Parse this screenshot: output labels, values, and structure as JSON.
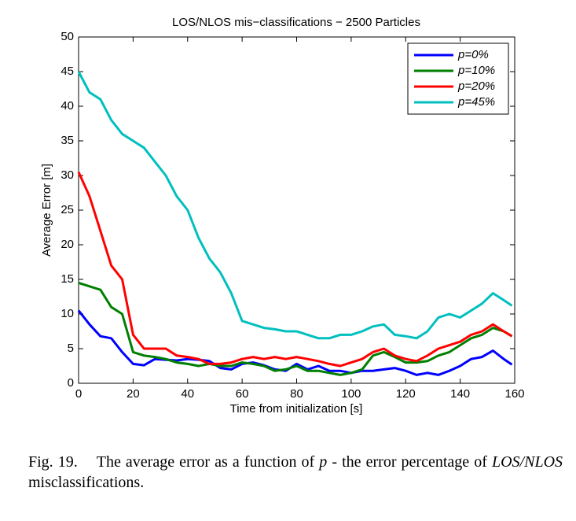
{
  "chart_data": {
    "type": "line",
    "title": "LOS/NLOS mis−classifications − 2500 Particles",
    "x_label": "Time from initialization [s]",
    "y_label": "Average Error [m]",
    "x": [
      0,
      4,
      8,
      12,
      16,
      20,
      24,
      28,
      32,
      36,
      40,
      44,
      48,
      52,
      56,
      60,
      64,
      68,
      72,
      76,
      80,
      84,
      88,
      92,
      96,
      100,
      104,
      108,
      112,
      116,
      120,
      124,
      128,
      132,
      136,
      140,
      144,
      148,
      152,
      156,
      159
    ],
    "series": [
      {
        "name": "p=0%",
        "color": "#0000ff",
        "values": [
          10.5,
          8.5,
          6.8,
          6.5,
          4.5,
          2.8,
          2.6,
          3.5,
          3.4,
          3.3,
          3.5,
          3.4,
          3.2,
          2.2,
          2.0,
          2.8,
          3.0,
          2.6,
          2.0,
          1.8,
          2.8,
          2.0,
          2.5,
          1.8,
          1.8,
          1.5,
          1.8,
          1.8,
          2.0,
          2.2,
          1.8,
          1.2,
          1.5,
          1.2,
          1.8,
          2.5,
          3.5,
          3.8,
          4.7,
          3.5,
          2.7
        ]
      },
      {
        "name": "p=10%",
        "color": "#007f00",
        "values": [
          14.5,
          14,
          13.5,
          11,
          10,
          4.5,
          4.0,
          3.8,
          3.5,
          3.0,
          2.8,
          2.5,
          2.8,
          2.5,
          2.5,
          3.0,
          2.8,
          2.5,
          1.8,
          2.0,
          2.5,
          1.8,
          1.8,
          1.5,
          1.2,
          1.5,
          2.0,
          4.0,
          4.5,
          3.8,
          3.0,
          3.0,
          3.2,
          4.0,
          4.5,
          5.5,
          6.5,
          7.0,
          8.0,
          7.5,
          6.8
        ]
      },
      {
        "name": "p=20%",
        "color": "#ff0000",
        "values": [
          30.5,
          27,
          22,
          17,
          15,
          7,
          5,
          5,
          5,
          4,
          3.8,
          3.5,
          2.8,
          2.8,
          3.0,
          3.5,
          3.8,
          3.5,
          3.8,
          3.5,
          3.8,
          3.5,
          3.2,
          2.8,
          2.5,
          3.0,
          3.5,
          4.5,
          5.0,
          4.0,
          3.5,
          3.2,
          4.0,
          5.0,
          5.5,
          6.0,
          7.0,
          7.5,
          8.5,
          7.5,
          6.8
        ]
      },
      {
        "name": "p=45%",
        "color": "#00bfbf",
        "values": [
          45,
          42,
          41,
          38,
          36,
          35,
          34,
          32,
          30,
          27,
          25,
          21,
          18,
          16,
          13,
          9,
          8.5,
          8,
          7.8,
          7.5,
          7.5,
          7.0,
          6.5,
          6.5,
          7.0,
          7.0,
          7.5,
          8.2,
          8.5,
          7.0,
          6.8,
          6.5,
          7.5,
          9.5,
          10.0,
          9.5,
          10.5,
          11.5,
          13,
          12,
          11.2
        ]
      }
    ],
    "xlim": [
      0,
      160
    ],
    "xticks": [
      0,
      20,
      40,
      60,
      80,
      100,
      120,
      140,
      160
    ],
    "ylim": [
      0,
      50
    ],
    "yticks": [
      0,
      5,
      10,
      15,
      20,
      25,
      30,
      35,
      40,
      45,
      50
    ],
    "grid": false,
    "legend": "upper right"
  },
  "caption": {
    "label": "Fig. 19.",
    "parts": [
      "The average error as a function of ",
      "p",
      " - the error percentage of ",
      "LOS/NLOS",
      " misclassifications."
    ]
  }
}
